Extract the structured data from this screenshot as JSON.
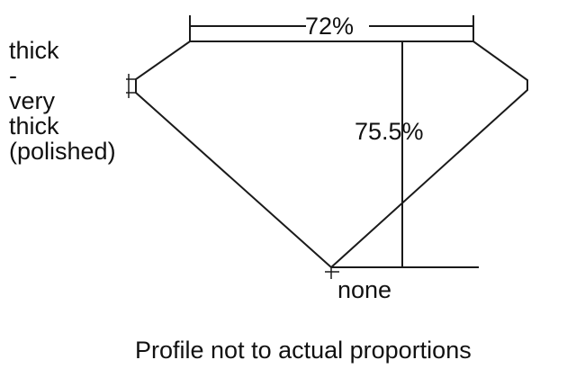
{
  "labels": {
    "table": "72%",
    "depth": "75.5%",
    "culet": "none",
    "girdle": [
      "thick",
      "-",
      "very",
      "thick",
      "(polished)"
    ],
    "caption": "Profile not to actual proportions"
  },
  "colors": {
    "line": "#1a1a1a",
    "background": "#ffffff"
  }
}
